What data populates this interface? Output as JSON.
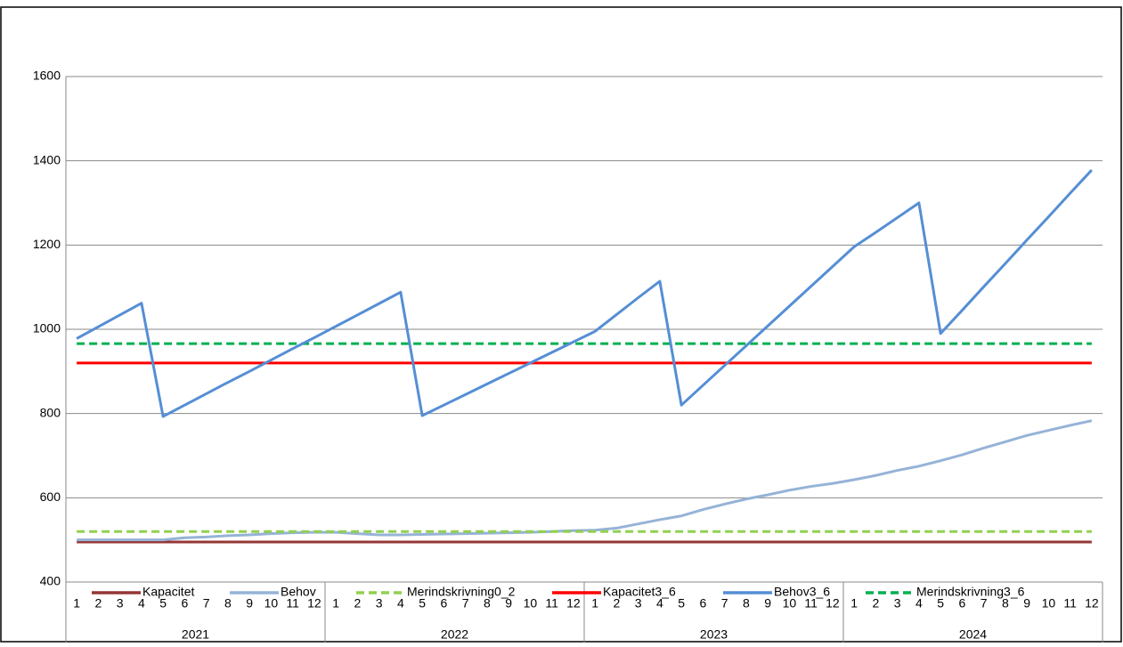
{
  "chart_data": {
    "type": "line",
    "categories": [
      "1",
      "2",
      "3",
      "4",
      "5",
      "6",
      "7",
      "8",
      "9",
      "10",
      "11",
      "12",
      "1",
      "2",
      "3",
      "4",
      "5",
      "6",
      "7",
      "8",
      "9",
      "10",
      "11",
      "12",
      "1",
      "2",
      "3",
      "4",
      "5",
      "6",
      "7",
      "8",
      "9",
      "10",
      "11",
      "12",
      "1",
      "2",
      "3",
      "4",
      "5",
      "6",
      "7",
      "8",
      "9",
      "10",
      "11",
      "12"
    ],
    "groups": [
      "2021",
      "2022",
      "2023",
      "2024"
    ],
    "ylim": [
      400,
      1600
    ],
    "yticks": [
      400,
      600,
      800,
      1000,
      1200,
      1400,
      1600
    ],
    "grid": true,
    "series": [
      {
        "name": "Kapacitet",
        "color": "#953735",
        "dash": false,
        "values": [
          495,
          495,
          495,
          495,
          495,
          495,
          495,
          495,
          495,
          495,
          495,
          495,
          495,
          495,
          495,
          495,
          495,
          495,
          495,
          495,
          495,
          495,
          495,
          495,
          495,
          495,
          495,
          495,
          495,
          495,
          495,
          495,
          495,
          495,
          495,
          495,
          495,
          495,
          495,
          495,
          495,
          495,
          495,
          495,
          495,
          495,
          495,
          495
        ]
      },
      {
        "name": "Behov",
        "color": "#95b3d7",
        "dash": false,
        "values": [
          500,
          500,
          500,
          500,
          500,
          505,
          507,
          510,
          512,
          515,
          517,
          518,
          518,
          515,
          512,
          512,
          513,
          514,
          515,
          516,
          517,
          518,
          520,
          522,
          523,
          528,
          538,
          548,
          557,
          572,
          585,
          597,
          607,
          618,
          627,
          634,
          643,
          653,
          665,
          675,
          688,
          702,
          718,
          733,
          748,
          760,
          772,
          783
        ]
      },
      {
        "name": "Merindskrivning0_2",
        "color": "#92d050",
        "dash": true,
        "values": [
          520,
          520,
          520,
          520,
          520,
          520,
          520,
          520,
          520,
          520,
          520,
          520,
          520,
          520,
          520,
          520,
          520,
          520,
          520,
          520,
          520,
          520,
          520,
          520,
          520,
          520,
          520,
          520,
          520,
          520,
          520,
          520,
          520,
          520,
          520,
          520,
          520,
          520,
          520,
          520,
          520,
          520,
          520,
          520,
          520,
          520,
          520,
          520
        ]
      },
      {
        "name": "Kapacitet3_6",
        "color": "#ff0000",
        "dash": false,
        "values": [
          920,
          920,
          920,
          920,
          920,
          920,
          920,
          920,
          920,
          920,
          920,
          920,
          920,
          920,
          920,
          920,
          920,
          920,
          920,
          920,
          920,
          920,
          920,
          920,
          920,
          920,
          920,
          920,
          920,
          920,
          920,
          920,
          920,
          920,
          920,
          920,
          920,
          920,
          920,
          920,
          920,
          920,
          920,
          920,
          920,
          920,
          920,
          920
        ]
      },
      {
        "name": "Behov3_6",
        "color": "#558ed5",
        "dash": false,
        "values": [
          978,
          1006,
          1034,
          1062,
          793,
          820,
          847,
          874,
          900,
          927,
          954,
          980,
          1007,
          1034,
          1061,
          1088,
          795,
          820,
          845,
          870,
          895,
          920,
          945,
          970,
          995,
          1035,
          1075,
          1114,
          820,
          867,
          914,
          961,
          1008,
          1055,
          1102,
          1149,
          1196,
          1230,
          1265,
          1300,
          990,
          1045,
          1101,
          1156,
          1212,
          1267,
          1323,
          1378
        ]
      },
      {
        "name": "Merindskrivning3_6",
        "color": "#00b050",
        "dash": true,
        "values": [
          966,
          966,
          966,
          966,
          966,
          966,
          966,
          966,
          966,
          966,
          966,
          966,
          966,
          966,
          966,
          966,
          966,
          966,
          966,
          966,
          966,
          966,
          966,
          966,
          966,
          966,
          966,
          966,
          966,
          966,
          966,
          966,
          966,
          966,
          966,
          966,
          966,
          966,
          966,
          966,
          966,
          966,
          966,
          966,
          966,
          966,
          966,
          966
        ]
      }
    ]
  }
}
